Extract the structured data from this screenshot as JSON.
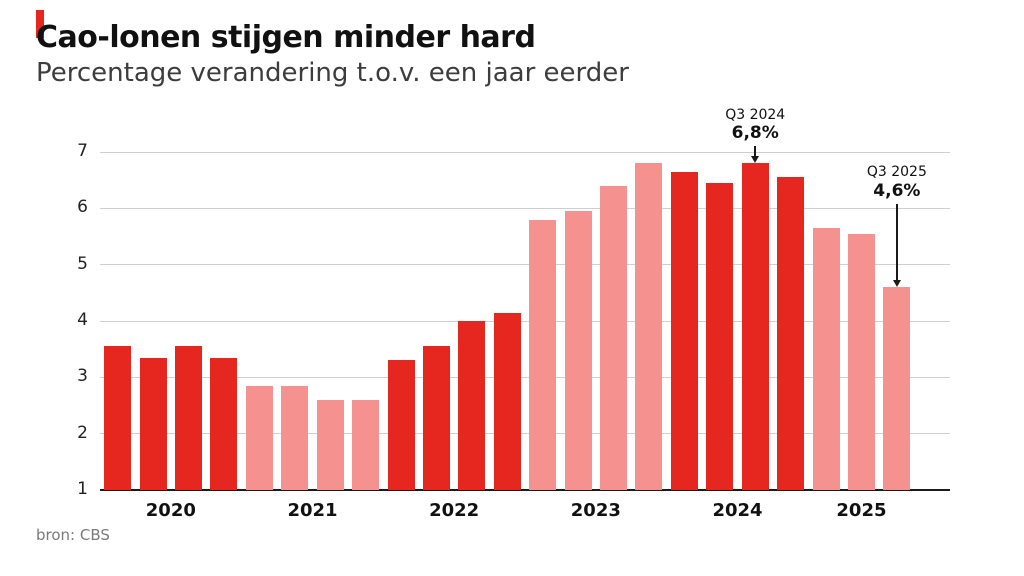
{
  "header": {
    "title": "Cao-lonen stijgen minder hard",
    "subtitle": "Percentage verandering t.o.v. een jaar eerder"
  },
  "footer": {
    "source": "bron: CBS"
  },
  "chart_data": {
    "type": "bar",
    "title": "Cao-lonen stijgen minder hard",
    "subtitle": "Percentage verandering t.o.v. een jaar eerder",
    "source": "bron: CBS",
    "ylabel": "",
    "xlabel": "",
    "ylim": [
      1,
      7
    ],
    "yticks": [
      1,
      2,
      3,
      4,
      5,
      6,
      7
    ],
    "grid": true,
    "legend": "none",
    "x_year_labels": [
      "2020",
      "2021",
      "2022",
      "2023",
      "2024",
      "2025"
    ],
    "colors": {
      "dark": "#e5271f",
      "light": "#f5928f",
      "axis": "#1a1a1a",
      "grid": "#cfcfcf"
    },
    "year_shade": {
      "2020": "dark",
      "2021": "light",
      "2022": "dark",
      "2023": "light",
      "2024": "dark",
      "2025": "light"
    },
    "points": [
      {
        "label": "2020 Q1",
        "year": "2020",
        "value": 3.55
      },
      {
        "label": "2020 Q2",
        "year": "2020",
        "value": 3.35
      },
      {
        "label": "2020 Q3",
        "year": "2020",
        "value": 3.55
      },
      {
        "label": "2020 Q4",
        "year": "2020",
        "value": 3.35
      },
      {
        "label": "2021 Q1",
        "year": "2021",
        "value": 2.85
      },
      {
        "label": "2021 Q2",
        "year": "2021",
        "value": 2.85
      },
      {
        "label": "2021 Q3",
        "year": "2021",
        "value": 2.6
      },
      {
        "label": "2021 Q4",
        "year": "2021",
        "value": 2.6
      },
      {
        "label": "2022 Q1",
        "year": "2022",
        "value": 3.3
      },
      {
        "label": "2022 Q2",
        "year": "2022",
        "value": 3.55
      },
      {
        "label": "2022 Q3",
        "year": "2022",
        "value": 4.0
      },
      {
        "label": "2022 Q4",
        "year": "2022",
        "value": 4.15
      },
      {
        "label": "2023 Q1",
        "year": "2023",
        "value": 5.8
      },
      {
        "label": "2023 Q2",
        "year": "2023",
        "value": 5.95
      },
      {
        "label": "2023 Q3",
        "year": "2023",
        "value": 6.4
      },
      {
        "label": "2023 Q4",
        "year": "2023",
        "value": 6.8
      },
      {
        "label": "2024 Q1",
        "year": "2024",
        "value": 6.65
      },
      {
        "label": "2024 Q2",
        "year": "2024",
        "value": 6.45
      },
      {
        "label": "2024 Q3",
        "year": "2024",
        "value": 6.8
      },
      {
        "label": "2024 Q4",
        "year": "2024",
        "value": 6.55
      },
      {
        "label": "2025 Q1",
        "year": "2025",
        "value": 5.65
      },
      {
        "label": "2025 Q2",
        "year": "2025",
        "value": 5.55
      },
      {
        "label": "2025 Q3",
        "year": "2025",
        "value": 4.6
      }
    ],
    "annotations": [
      {
        "line1": "Q3 2024",
        "line2": "6,8%",
        "target_label": "2024 Q3"
      },
      {
        "line1": "Q3 2025",
        "line2": "4,6%",
        "target_label": "2025 Q3"
      }
    ]
  }
}
